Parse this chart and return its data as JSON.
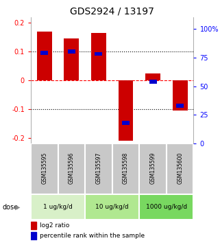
{
  "title": "GDS2924 / 13197",
  "samples": [
    "GSM135595",
    "GSM135596",
    "GSM135597",
    "GSM135598",
    "GSM135599",
    "GSM135600"
  ],
  "log2_ratios": [
    0.17,
    0.145,
    0.165,
    -0.21,
    0.025,
    -0.105
  ],
  "percentile_ranks": [
    79,
    80,
    78,
    18,
    54,
    33
  ],
  "bar_color_red": "#cc0000",
  "bar_color_blue": "#0000cc",
  "ylim_left": [
    -0.22,
    0.22
  ],
  "ylim_right": [
    0,
    110
  ],
  "yticks_left": [
    -0.2,
    -0.1,
    0.0,
    0.1,
    0.2
  ],
  "ytick_labels_left": [
    "-0.2",
    "-0.1",
    "0",
    "0.1",
    "0.2"
  ],
  "yticks_right": [
    0,
    25,
    50,
    75,
    100
  ],
  "ytick_labels_right": [
    "0",
    "25",
    "50",
    "75",
    "100%"
  ],
  "legend_red": "log2 ratio",
  "legend_blue": "percentile rank within the sample",
  "bg_sample_color": "#c8c8c8",
  "bg_dose_colors": [
    "#d8f0c8",
    "#b0e890",
    "#78d860"
  ],
  "dose_labels": [
    "1 ug/kg/d",
    "10 ug/kg/d",
    "1000 ug/kg/d"
  ],
  "dose_group_starts": [
    0,
    2,
    4
  ],
  "dose_group_ends": [
    1,
    3,
    5
  ]
}
